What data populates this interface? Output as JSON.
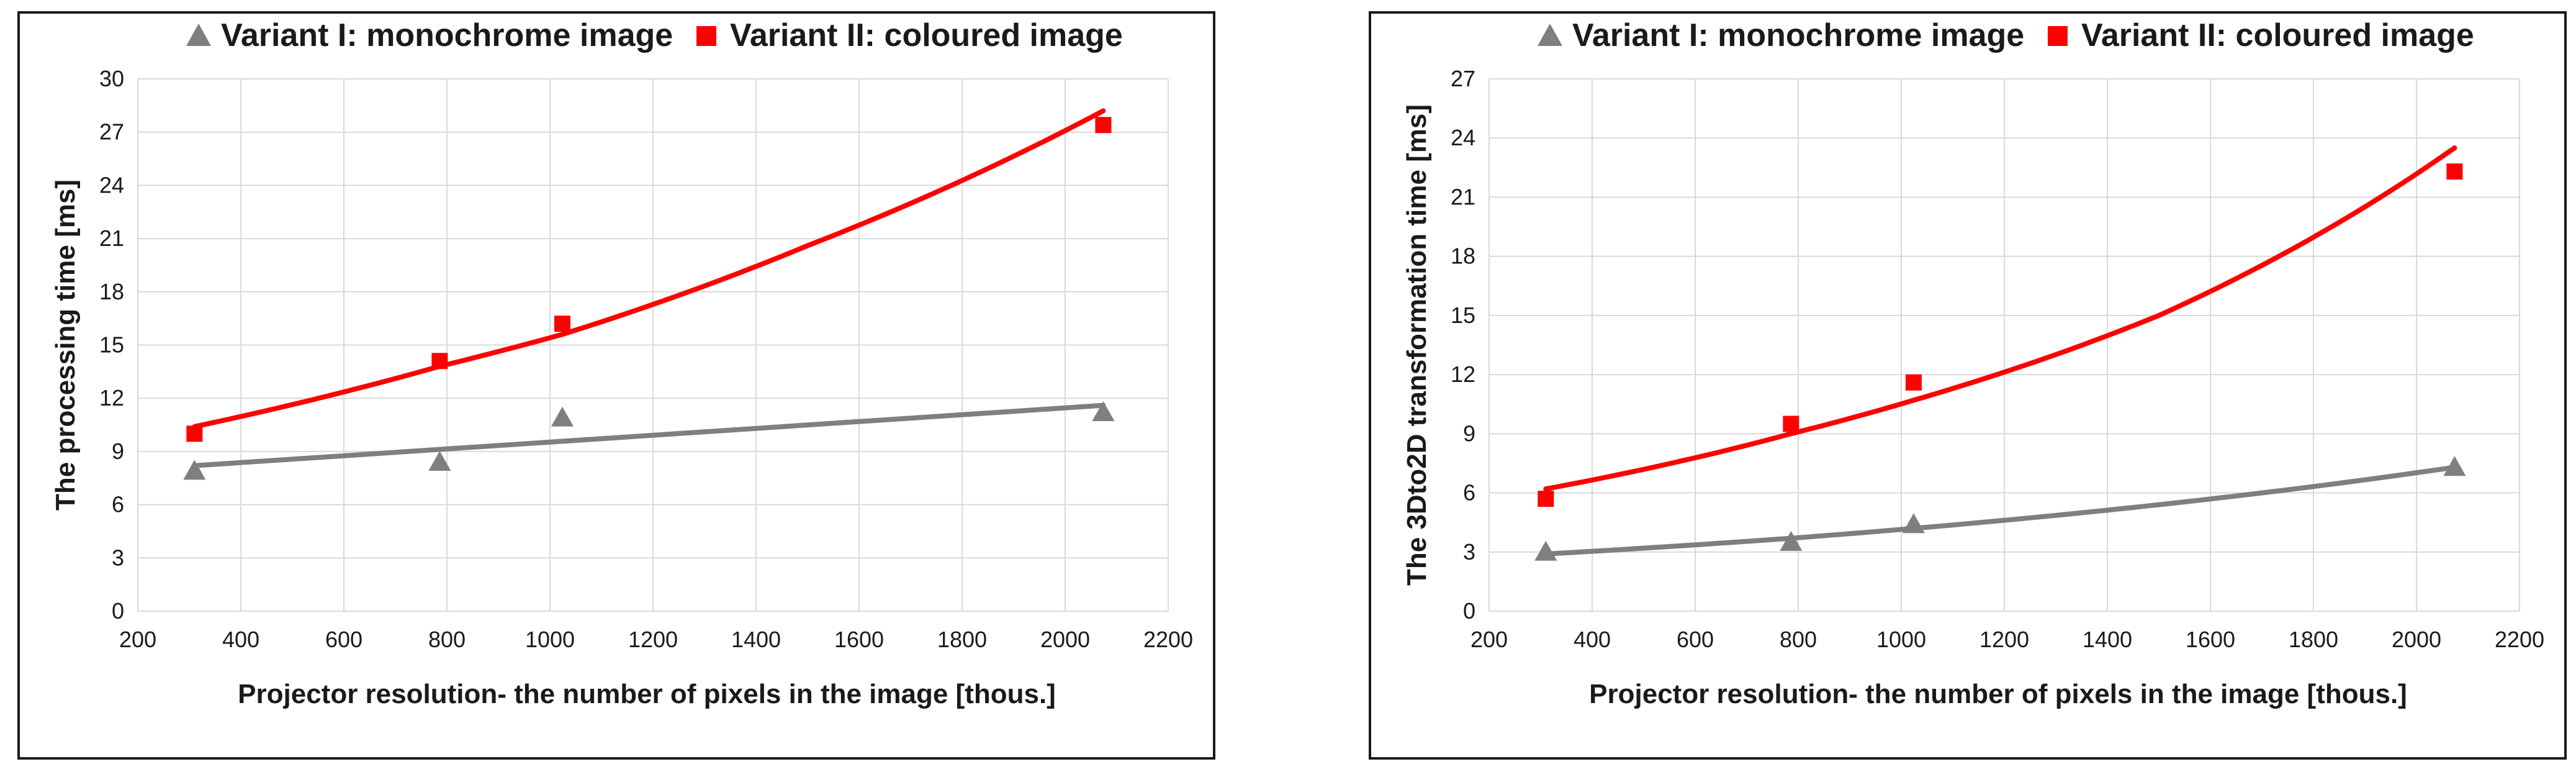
{
  "chart_data": [
    {
      "type": "scatter",
      "title": "",
      "xlabel": "Projector resolution- the number of pixels in the image [thous.]",
      "ylabel": "The processing time [ms]",
      "xlim": [
        200,
        2200
      ],
      "ylim": [
        0,
        30
      ],
      "xticks": [
        200,
        400,
        600,
        800,
        1000,
        1200,
        1400,
        1600,
        1800,
        2000,
        2200
      ],
      "yticks": [
        0,
        3,
        6,
        9,
        12,
        15,
        18,
        21,
        24,
        27,
        30
      ],
      "grid": true,
      "legend_position": "top",
      "series": [
        {
          "name": "Variant I: monochrome image",
          "color": "#7f7f7f",
          "marker": "triangle",
          "x": [
            310,
            786,
            1024,
            2074
          ],
          "y": [
            7.9,
            8.4,
            10.9,
            11.2
          ],
          "trend": {
            "type": "linear",
            "x": [
              310,
              2074
            ],
            "y": [
              8.2,
              11.6
            ]
          }
        },
        {
          "name": "Variant II: coloured image",
          "color": "#ff0000",
          "marker": "square",
          "x": [
            310,
            786,
            1024,
            2074
          ],
          "y": [
            10.0,
            14.1,
            16.2,
            27.4
          ],
          "trend": {
            "type": "exponential",
            "x": [
              310,
              786,
              1024,
              1500,
              2074
            ],
            "y": [
              10.4,
              13.8,
              15.6,
              20.6,
              28.2
            ]
          }
        }
      ]
    },
    {
      "type": "scatter",
      "title": "",
      "xlabel": "Projector resolution- the number of pixels in the image [thous.]",
      "ylabel": "The 3Dto2D transformation time [ms]",
      "xlim": [
        200,
        2200
      ],
      "ylim": [
        0,
        27
      ],
      "xticks": [
        200,
        400,
        600,
        800,
        1000,
        1200,
        1400,
        1600,
        1800,
        2000,
        2200
      ],
      "yticks": [
        0,
        3,
        6,
        9,
        12,
        15,
        18,
        21,
        24,
        27
      ],
      "grid": true,
      "legend_position": "top",
      "series": [
        {
          "name": "Variant I: monochrome image",
          "color": "#7f7f7f",
          "marker": "triangle",
          "x": [
            310,
            786,
            1024,
            2074
          ],
          "y": [
            3.0,
            3.5,
            4.4,
            7.3
          ],
          "trend": {
            "type": "exponential",
            "x": [
              310,
              786,
              1024,
              1500,
              2074
            ],
            "y": [
              2.9,
              3.7,
              4.2,
              5.4,
              7.3
            ]
          }
        },
        {
          "name": "Variant II: coloured image",
          "color": "#ff0000",
          "marker": "square",
          "x": [
            310,
            786,
            1024,
            2074
          ],
          "y": [
            5.7,
            9.5,
            11.6,
            22.3
          ],
          "trend": {
            "type": "exponential",
            "x": [
              310,
              786,
              1024,
              1500,
              2074
            ],
            "y": [
              6.2,
              9.0,
              10.7,
              15.0,
              23.5
            ]
          }
        }
      ]
    }
  ]
}
